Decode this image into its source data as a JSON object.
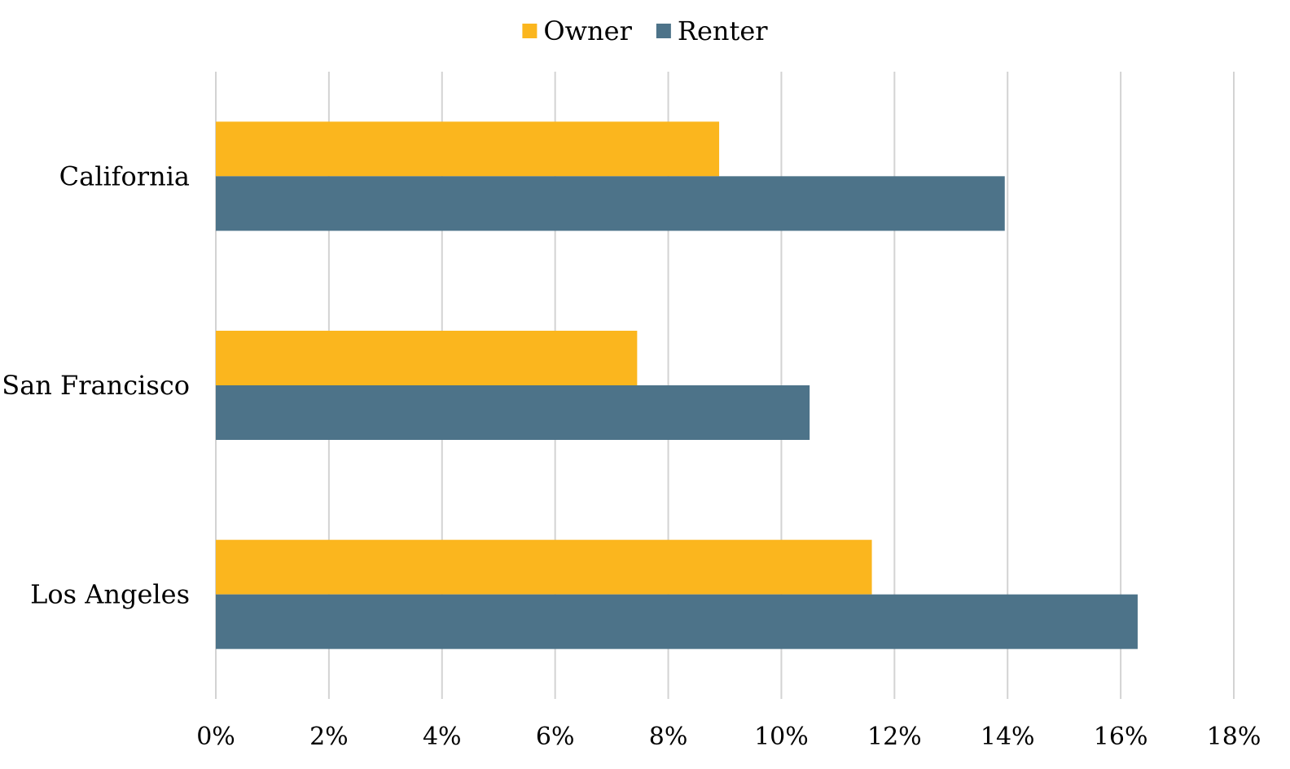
{
  "chart_data": {
    "type": "bar",
    "orientation": "horizontal",
    "categories": [
      "California",
      "San Francisco",
      "Los Angeles"
    ],
    "series": [
      {
        "name": "Owner",
        "color": "#fbb61e",
        "values": [
          8.9,
          7.45,
          11.6
        ]
      },
      {
        "name": "Renter",
        "color": "#4d7389",
        "values": [
          13.95,
          10.5,
          16.3
        ]
      }
    ],
    "xlim": [
      0,
      18
    ],
    "x_ticks": [
      {
        "value": 0,
        "label": "0%"
      },
      {
        "value": 2,
        "label": "2%"
      },
      {
        "value": 4,
        "label": "4%"
      },
      {
        "value": 6,
        "label": "6%"
      },
      {
        "value": 8,
        "label": "8%"
      },
      {
        "value": 10,
        "label": "10%"
      },
      {
        "value": 12,
        "label": "12%"
      },
      {
        "value": 14,
        "label": "14%"
      },
      {
        "value": 16,
        "label": "16%"
      },
      {
        "value": 18,
        "label": "18%"
      }
    ],
    "grid": true,
    "legend_position": "top-center",
    "title": "",
    "xlabel": "",
    "ylabel": ""
  }
}
